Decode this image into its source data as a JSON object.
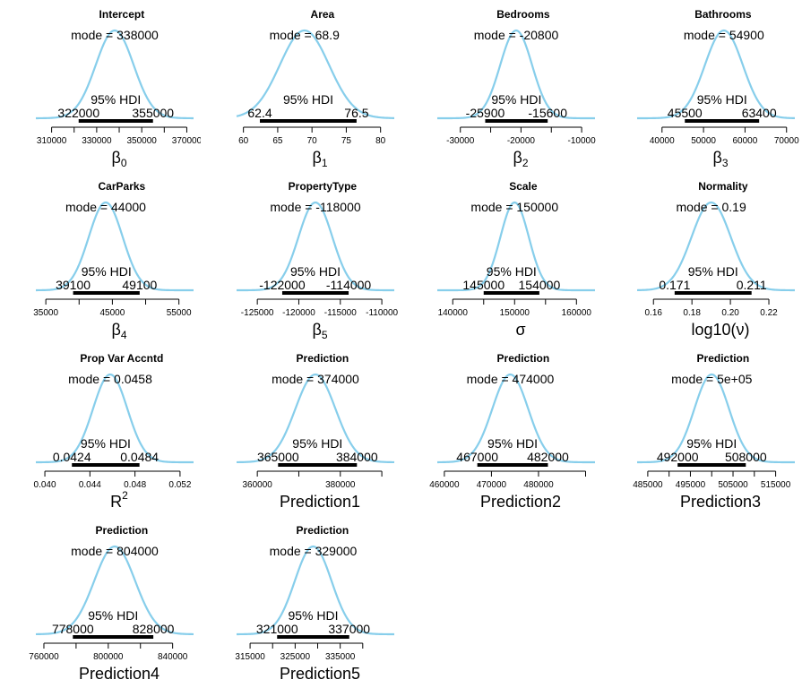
{
  "colors": {
    "curve": "#87CEEB",
    "hdi_bar": "#000000",
    "axis": "#000000"
  },
  "chart_data": [
    {
      "type": "line",
      "title": "Intercept",
      "mode_label": "mode = 338000",
      "hdi_label": "95% HDI",
      "hdi_low_label": "322000",
      "hdi_high_label": "355000",
      "mode": 338000,
      "hdi": [
        322000,
        355000
      ],
      "xlim": [
        303000,
        373000
      ],
      "ticks": [
        310000,
        320000,
        330000,
        340000,
        350000,
        360000,
        370000
      ],
      "tick_labels": [
        "310000",
        "",
        "330000",
        "",
        "350000",
        "",
        "370000"
      ],
      "xlabel": "β",
      "xlabel_sub": "0",
      "xlabel_sup": ""
    },
    {
      "type": "line",
      "title": "Area",
      "mode_label": "mode = 68.9",
      "hdi_label": "95% HDI",
      "hdi_low_label": "62.4",
      "hdi_high_label": "76.5",
      "mode": 68.9,
      "hdi": [
        62.4,
        76.5
      ],
      "xlim": [
        59,
        82
      ],
      "ticks": [
        60,
        65,
        70,
        75,
        80
      ],
      "tick_labels": [
        "60",
        "65",
        "70",
        "75",
        "80"
      ],
      "xlabel": "β",
      "xlabel_sub": "1",
      "xlabel_sup": ""
    },
    {
      "type": "line",
      "title": "Bedrooms",
      "mode_label": "mode = -20800",
      "hdi_label": "95% HDI",
      "hdi_low_label": "-25900",
      "hdi_high_label": "-15600",
      "mode": -20800,
      "hdi": [
        -25900,
        -15600
      ],
      "xlim": [
        -33800,
        -7800
      ],
      "ticks": [
        -30000,
        -25000,
        -20000,
        -15000,
        -10000
      ],
      "tick_labels": [
        "-30000",
        "",
        "-20000",
        "",
        "-10000"
      ],
      "xlabel": "β",
      "xlabel_sub": "2",
      "xlabel_sup": ""
    },
    {
      "type": "line",
      "title": "Bathrooms",
      "mode_label": "mode = 54900",
      "hdi_label": "95% HDI",
      "hdi_low_label": "45500",
      "hdi_high_label": "63400",
      "mode": 54900,
      "hdi": [
        45500,
        63400
      ],
      "xlim": [
        34000,
        72000
      ],
      "ticks": [
        40000,
        50000,
        60000,
        70000
      ],
      "tick_labels": [
        "40000",
        "50000",
        "60000",
        "70000"
      ],
      "xlabel": "β",
      "xlabel_sub": "3",
      "xlabel_sup": ""
    },
    {
      "type": "line",
      "title": "CarParks",
      "mode_label": "mode = 44000",
      "hdi_label": "95% HDI",
      "hdi_low_label": "39100",
      "hdi_high_label": "49100",
      "mode": 44000,
      "hdi": [
        39100,
        49100
      ],
      "xlim": [
        33500,
        57200
      ],
      "ticks": [
        35000,
        40000,
        45000,
        50000,
        55000
      ],
      "tick_labels": [
        "35000",
        "",
        "45000",
        "",
        "55000"
      ],
      "xlabel": "β",
      "xlabel_sub": "4",
      "xlabel_sup": ""
    },
    {
      "type": "line",
      "title": "PropertyType",
      "mode_label": "mode = -118000",
      "hdi_label": "95% HDI",
      "hdi_low_label": "-122000",
      "hdi_high_label": "-114000",
      "mode": -118000,
      "hdi": [
        -122000,
        -114000
      ],
      "xlim": [
        -127500,
        -108500
      ],
      "ticks": [
        -125000,
        -120000,
        -115000,
        -110000
      ],
      "tick_labels": [
        "-125000",
        "-120000",
        "-115000",
        "-110000"
      ],
      "xlabel": "β",
      "xlabel_sub": "5",
      "xlabel_sup": ""
    },
    {
      "type": "line",
      "title": "Scale",
      "mode_label": "mode = 150000",
      "hdi_label": "95% HDI",
      "hdi_low_label": "145000",
      "hdi_high_label": "154000",
      "mode": 150000,
      "hdi": [
        145000,
        154000
      ],
      "xlim": [
        137500,
        163000
      ],
      "ticks": [
        140000,
        145000,
        150000,
        155000,
        160000
      ],
      "tick_labels": [
        "140000",
        "",
        "150000",
        "",
        "160000"
      ],
      "xlabel": "σ",
      "xlabel_sub": "",
      "xlabel_sup": ""
    },
    {
      "type": "line",
      "title": "Normality",
      "mode_label": "mode = 0.19",
      "hdi_label": "95% HDI",
      "hdi_low_label": "0.171",
      "hdi_high_label": "0.211",
      "mode": 0.19,
      "hdi": [
        0.171,
        0.211
      ],
      "xlim": [
        0.1515,
        0.2335
      ],
      "ticks": [
        0.16,
        0.18,
        0.2,
        0.22
      ],
      "tick_labels": [
        "0.16",
        "0.18",
        "0.20",
        "0.22"
      ],
      "xlabel": "log10(ν)",
      "xlabel_sub": "",
      "xlabel_sup": ""
    },
    {
      "type": "line",
      "title": "Prop Var Accntd",
      "mode_label": "mode = 0.0458",
      "hdi_label": "95% HDI",
      "hdi_low_label": "0.0424",
      "hdi_high_label": "0.0484",
      "mode": 0.0458,
      "hdi": [
        0.0424,
        0.0484
      ],
      "xlim": [
        0.0392,
        0.0532
      ],
      "ticks": [
        0.04,
        0.044,
        0.048,
        0.052
      ],
      "tick_labels": [
        "0.040",
        "0.044",
        "0.048",
        "0.052"
      ],
      "xlabel": "R",
      "xlabel_sub": "",
      "xlabel_sup": "2"
    },
    {
      "type": "line",
      "title": "Prediction",
      "mode_label": "mode = 374000",
      "hdi_label": "95% HDI",
      "hdi_low_label": "365000",
      "hdi_high_label": "384000",
      "mode": 374000,
      "hdi": [
        365000,
        384000
      ],
      "xlim": [
        355000,
        393000
      ],
      "ticks": [
        360000,
        370000,
        380000,
        390000
      ],
      "tick_labels": [
        "360000",
        "",
        "380000",
        ""
      ],
      "xlabel": "Prediction1",
      "xlabel_sub": "",
      "xlabel_sup": ""
    },
    {
      "type": "line",
      "title": "Prediction",
      "mode_label": "mode = 474000",
      "hdi_label": "95% HDI",
      "hdi_low_label": "467000",
      "hdi_high_label": "482000",
      "mode": 474000,
      "hdi": [
        467000,
        482000
      ],
      "xlim": [
        458500,
        492000
      ],
      "ticks": [
        460000,
        470000,
        480000,
        490000
      ],
      "tick_labels": [
        "460000",
        "470000",
        "480000",
        ""
      ],
      "xlabel": "Prediction2",
      "xlabel_sub": "",
      "xlabel_sup": ""
    },
    {
      "type": "line",
      "title": "Prediction",
      "mode_label": "mode = 5e+05",
      "hdi_label": "95% HDI",
      "hdi_low_label": "492000",
      "hdi_high_label": "508000",
      "mode": 500000,
      "hdi": [
        492000,
        508000
      ],
      "xlim": [
        482500,
        519500
      ],
      "ticks": [
        485000,
        490000,
        495000,
        500000,
        505000,
        510000,
        515000
      ],
      "tick_labels": [
        "485000",
        "",
        "495000",
        "",
        "505000",
        "",
        "515000"
      ],
      "xlabel": "Prediction3",
      "xlabel_sub": "",
      "xlabel_sup": ""
    },
    {
      "type": "line",
      "title": "Prediction",
      "mode_label": "mode = 804000",
      "hdi_label": "95% HDI",
      "hdi_low_label": "778000",
      "hdi_high_label": "828000",
      "mode": 804000,
      "hdi": [
        778000,
        828000
      ],
      "xlim": [
        755000,
        853000
      ],
      "ticks": [
        760000,
        780000,
        800000,
        820000,
        840000
      ],
      "tick_labels": [
        "760000",
        "",
        "800000",
        "",
        "840000"
      ],
      "xlabel": "Prediction4",
      "xlabel_sub": "",
      "xlabel_sup": ""
    },
    {
      "type": "line",
      "title": "Prediction",
      "mode_label": "mode = 329000",
      "hdi_label": "95% HDI",
      "hdi_low_label": "321000",
      "hdi_high_label": "337000",
      "mode": 329000,
      "hdi": [
        321000,
        337000
      ],
      "xlim": [
        312000,
        347000
      ],
      "ticks": [
        315000,
        320000,
        325000,
        330000,
        335000,
        340000
      ],
      "tick_labels": [
        "315000",
        "",
        "325000",
        "",
        "335000",
        ""
      ],
      "xlabel": "Prediction5",
      "xlabel_sub": "",
      "xlabel_sup": ""
    }
  ]
}
